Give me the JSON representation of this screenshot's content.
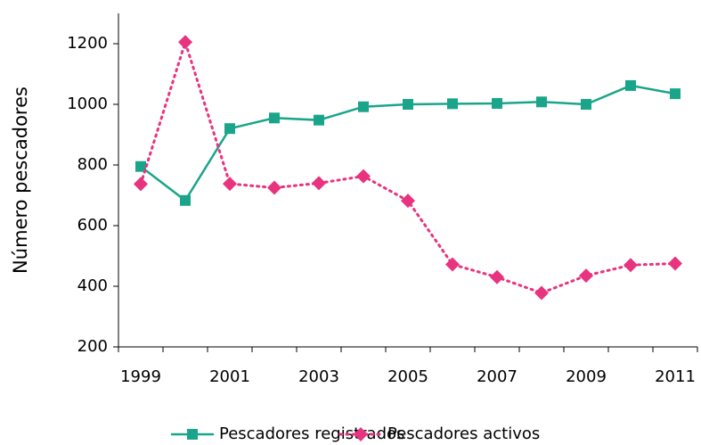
{
  "chart_data": {
    "type": "line",
    "y_label": "Número pescadores",
    "categories": [
      "1999",
      null,
      "2001",
      null,
      "2003",
      null,
      "2005",
      null,
      "2007",
      null,
      "2009",
      null,
      "2011"
    ],
    "series": [
      {
        "name": "Pescadores registrados",
        "color": "#1aa58a",
        "marker": "square",
        "dash": "solid",
        "values": [
          795,
          683,
          920,
          955,
          948,
          992,
          1000,
          1002,
          1003,
          1008,
          1000,
          1062,
          1035
        ]
      },
      {
        "name": "Pescadores activos",
        "color": "#e8337f",
        "marker": "diamond",
        "dash": "dotted",
        "values": [
          737,
          1205,
          738,
          725,
          740,
          763,
          682,
          472,
          430,
          378,
          435,
          470,
          475
        ]
      }
    ],
    "ylim": [
      200,
      1300
    ],
    "yticks": [
      200,
      400,
      600,
      800,
      1000,
      1200
    ],
    "grid": false,
    "legend": "bottom"
  }
}
